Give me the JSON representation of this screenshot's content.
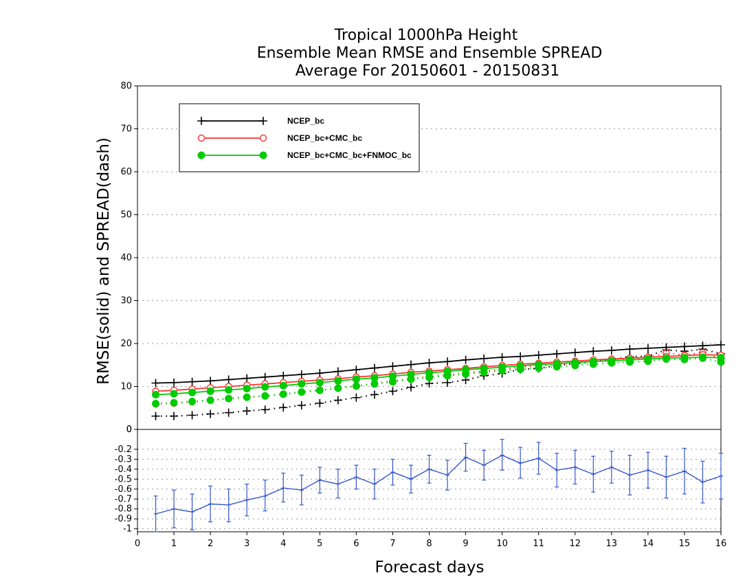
{
  "chart_data": [
    {
      "type": "line",
      "title": [
        "Tropical 1000hPa Height",
        "Ensemble Mean RMSE and Ensemble SPREAD",
        "Average For 20150601 - 20150831"
      ],
      "xlabel": "Forecast days",
      "ylabel": "RMSE(solid)  and  SPREAD(dash)",
      "xlim": [
        0,
        16
      ],
      "ylim": [
        0,
        80
      ],
      "yticks": [
        0,
        10,
        20,
        30,
        40,
        50,
        60,
        70,
        80
      ],
      "grid": true,
      "legend_position": "top-left",
      "x": [
        0.5,
        1,
        1.5,
        2,
        2.5,
        3,
        3.5,
        4,
        4.5,
        5,
        5.5,
        6,
        6.5,
        7,
        7.5,
        8,
        8.5,
        9,
        9.5,
        10,
        10.5,
        11,
        11.5,
        12,
        12.5,
        13,
        13.5,
        14,
        14.5,
        15,
        15.5,
        16
      ],
      "series": [
        {
          "name": "NCEP_bc",
          "color": "#000000",
          "marker": "plus",
          "style": "solid",
          "values": [
            10.8,
            10.9,
            11.1,
            11.3,
            11.6,
            11.9,
            12.2,
            12.5,
            12.8,
            13.1,
            13.5,
            13.9,
            14.3,
            14.7,
            15.1,
            15.5,
            15.8,
            16.2,
            16.5,
            16.8,
            17.0,
            17.3,
            17.6,
            17.9,
            18.2,
            18.4,
            18.7,
            18.9,
            19.1,
            19.3,
            19.5,
            19.7
          ]
        },
        {
          "name": "NCEP_bc+CMC_bc",
          "color": "#ff3333",
          "marker": "open-circle",
          "style": "solid",
          "values": [
            8.9,
            9.1,
            9.4,
            9.7,
            10.0,
            10.3,
            10.6,
            10.9,
            11.2,
            11.5,
            11.8,
            12.2,
            12.5,
            12.9,
            13.3,
            13.6,
            13.9,
            14.2,
            14.6,
            14.9,
            15.2,
            15.4,
            15.7,
            15.9,
            16.2,
            16.4,
            16.6,
            16.8,
            17.0,
            17.2,
            17.4,
            17.3
          ]
        },
        {
          "name": "NCEP_bc+CMC_bc+FNMOC_bc",
          "color": "#00cc00",
          "marker": "filled-circle",
          "style": "solid",
          "values": [
            8.1,
            8.3,
            8.6,
            8.9,
            9.2,
            9.5,
            9.9,
            10.2,
            10.6,
            10.9,
            11.3,
            11.7,
            12.0,
            12.4,
            12.8,
            13.2,
            13.5,
            13.9,
            14.2,
            14.5,
            14.8,
            15.1,
            15.3,
            15.6,
            15.8,
            16.0,
            16.2,
            16.4,
            16.6,
            16.7,
            16.8,
            16.7
          ]
        },
        {
          "color": "#000000",
          "marker": "plus",
          "style": "dotted",
          "values": [
            3.1,
            3.1,
            3.3,
            3.6,
            3.9,
            4.3,
            4.6,
            5.1,
            5.6,
            6.1,
            6.8,
            7.4,
            8.1,
            8.9,
            9.8,
            10.7,
            10.9,
            11.5,
            12.5,
            13.0,
            14.0,
            14.2,
            14.9,
            15.3,
            15.8,
            16.3,
            16.9,
            17.1,
            18.5,
            18.2,
            18.7,
            17.6
          ]
        },
        {
          "color": "#ff3333",
          "marker": "open-circle",
          "style": "dotted",
          "values": [
            5.9,
            6.1,
            6.4,
            6.8,
            7.2,
            7.5,
            7.8,
            8.2,
            8.7,
            9.1,
            9.6,
            10.1,
            10.7,
            11.3,
            11.8,
            12.3,
            12.7,
            13.1,
            13.6,
            14.0,
            14.5,
            14.8,
            15.1,
            15.5,
            15.9,
            16.2,
            16.5,
            16.7,
            17.8,
            17.3,
            17.9,
            16.4
          ]
        },
        {
          "color": "#00cc00",
          "marker": "filled-circle",
          "style": "dotted",
          "values": [
            6.0,
            6.2,
            6.5,
            6.8,
            7.2,
            7.5,
            7.8,
            8.2,
            8.7,
            9.1,
            9.6,
            10.1,
            10.6,
            11.1,
            11.7,
            12.1,
            12.5,
            12.9,
            13.3,
            13.7,
            14.0,
            14.3,
            14.6,
            14.9,
            15.2,
            15.5,
            15.7,
            15.9,
            16.4,
            16.3,
            16.6,
            15.7
          ]
        }
      ]
    },
    {
      "type": "line",
      "xlim": [
        0,
        16
      ],
      "ylim": [
        -1.03,
        0
      ],
      "yticks": [
        -1,
        -0.9,
        -0.8,
        -0.7,
        -0.6,
        -0.5,
        -0.4,
        -0.3,
        -0.2,
        0
      ],
      "grid": true,
      "xticks": [
        0,
        1,
        2,
        3,
        4,
        5,
        6,
        7,
        8,
        9,
        10,
        11,
        12,
        13,
        14,
        15,
        16
      ],
      "series": [
        {
          "color": "#3355cc",
          "marker": "plus",
          "style": "solid",
          "error_bars": true,
          "x": [
            0.5,
            1,
            1.5,
            2,
            2.5,
            3,
            3.5,
            4,
            4.5,
            5,
            5.5,
            6,
            6.5,
            7,
            7.5,
            8,
            8.5,
            9,
            9.5,
            10,
            10.5,
            11,
            11.5,
            12,
            12.5,
            13,
            13.5,
            14,
            14.5,
            15,
            15.5,
            16
          ],
          "values": [
            -0.85,
            -0.8,
            -0.83,
            -0.75,
            -0.76,
            -0.71,
            -0.67,
            -0.59,
            -0.61,
            -0.51,
            -0.55,
            -0.48,
            -0.55,
            -0.43,
            -0.5,
            -0.4,
            -0.46,
            -0.28,
            -0.36,
            -0.26,
            -0.34,
            -0.29,
            -0.41,
            -0.38,
            -0.45,
            -0.38,
            -0.46,
            -0.41,
            -0.48,
            -0.42,
            -0.53,
            -0.47
          ],
          "lower": [
            -1.03,
            -0.99,
            -1.01,
            -0.93,
            -0.93,
            -0.87,
            -0.82,
            -0.73,
            -0.76,
            -0.64,
            -0.69,
            -0.6,
            -0.7,
            -0.56,
            -0.64,
            -0.54,
            -0.61,
            -0.42,
            -0.51,
            -0.41,
            -0.49,
            -0.45,
            -0.58,
            -0.55,
            -0.63,
            -0.54,
            -0.66,
            -0.59,
            -0.69,
            -0.65,
            -0.74,
            -0.7
          ],
          "upper": [
            -0.67,
            -0.61,
            -0.65,
            -0.57,
            -0.6,
            -0.55,
            -0.51,
            -0.44,
            -0.46,
            -0.38,
            -0.4,
            -0.36,
            -0.4,
            -0.3,
            -0.36,
            -0.26,
            -0.31,
            -0.14,
            -0.21,
            -0.1,
            -0.18,
            -0.13,
            -0.24,
            -0.21,
            -0.27,
            -0.22,
            -0.26,
            -0.23,
            -0.27,
            -0.19,
            -0.32,
            -0.24
          ]
        }
      ]
    }
  ]
}
